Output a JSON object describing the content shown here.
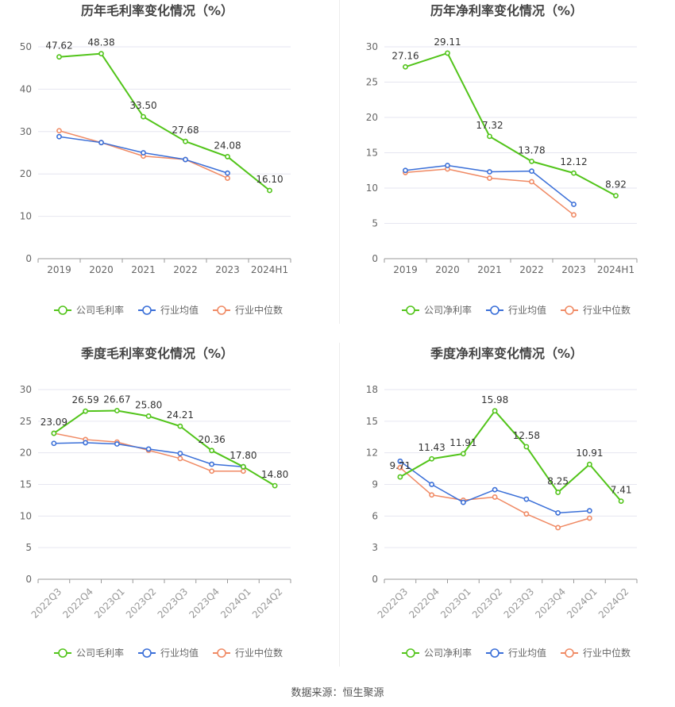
{
  "source_text": "数据来源：恒生聚源",
  "colors": {
    "company": "#52c41a",
    "industry_avg": "#3a6fd8",
    "industry_median": "#f08a64",
    "axis": "#999999",
    "grid": "#e6e6f0",
    "text": "#666666",
    "title": "#444444",
    "label": "#333333"
  },
  "chart_data": [
    {
      "type": "line",
      "title": "历年毛利率变化情况（%）",
      "categories": [
        "2019",
        "2020",
        "2021",
        "2022",
        "2023",
        "2024H1"
      ],
      "ylim": [
        0,
        50
      ],
      "yticks": [
        0,
        10,
        20,
        30,
        40,
        50
      ],
      "grid": true,
      "legend": "bottom",
      "label_series": 0,
      "series": [
        {
          "name": "公司毛利率",
          "color": "#52c41a",
          "values": [
            47.62,
            48.38,
            33.5,
            27.68,
            24.08,
            16.1
          ],
          "labels": [
            "47.62",
            "48.38",
            "33.50",
            "27.68",
            "24.08",
            "16.10"
          ]
        },
        {
          "name": "行业均值",
          "color": "#3a6fd8",
          "values": [
            28.8,
            27.4,
            25.0,
            23.4,
            20.2,
            null
          ]
        },
        {
          "name": "行业中位数",
          "color": "#f08a64",
          "values": [
            30.2,
            27.4,
            24.2,
            23.4,
            19.0,
            null
          ]
        }
      ]
    },
    {
      "type": "line",
      "title": "历年净利率变化情况（%）",
      "categories": [
        "2019",
        "2020",
        "2021",
        "2022",
        "2023",
        "2024H1"
      ],
      "ylim": [
        0,
        30
      ],
      "yticks": [
        0,
        5,
        10,
        15,
        20,
        25,
        30
      ],
      "grid": true,
      "legend": "bottom",
      "label_series": 0,
      "series": [
        {
          "name": "公司净利率",
          "color": "#52c41a",
          "values": [
            27.16,
            29.11,
            17.32,
            13.78,
            12.12,
            8.92
          ],
          "labels": [
            "27.16",
            "29.11",
            "17.32",
            "13.78",
            "12.12",
            "8.92"
          ]
        },
        {
          "name": "行业均值",
          "color": "#3a6fd8",
          "values": [
            12.5,
            13.2,
            12.3,
            12.4,
            7.7,
            null
          ]
        },
        {
          "name": "行业中位数",
          "color": "#f08a64",
          "values": [
            12.2,
            12.7,
            11.4,
            10.9,
            6.2,
            null
          ]
        }
      ]
    },
    {
      "type": "line",
      "title": "季度毛利率变化情况（%）",
      "categories": [
        "2022Q3",
        "2022Q4",
        "2023Q1",
        "2023Q2",
        "2023Q3",
        "2023Q4",
        "2024Q1",
        "2024Q2"
      ],
      "ylim": [
        0,
        30
      ],
      "yticks": [
        0,
        5,
        10,
        15,
        20,
        25,
        30
      ],
      "grid": true,
      "legend": "bottom",
      "label_series": 0,
      "series": [
        {
          "name": "公司毛利率",
          "color": "#52c41a",
          "values": [
            23.09,
            26.59,
            26.67,
            25.8,
            24.21,
            20.36,
            17.8,
            14.8
          ],
          "labels": [
            "23.09",
            "26.59",
            "26.67",
            "25.80",
            "24.21",
            "20.36",
            "17.80",
            "14.80"
          ]
        },
        {
          "name": "行业均值",
          "color": "#3a6fd8",
          "values": [
            21.5,
            21.6,
            21.4,
            20.6,
            19.9,
            18.2,
            17.8,
            null
          ]
        },
        {
          "name": "行业中位数",
          "color": "#f08a64",
          "values": [
            23.1,
            22.1,
            21.7,
            20.4,
            19.1,
            17.1,
            17.1,
            null
          ]
        }
      ]
    },
    {
      "type": "line",
      "title": "季度净利率变化情况（%）",
      "categories": [
        "2022Q3",
        "2022Q4",
        "2023Q1",
        "2023Q2",
        "2023Q3",
        "2023Q4",
        "2024Q1",
        "2024Q2"
      ],
      "ylim": [
        0,
        18
      ],
      "yticks": [
        0,
        3,
        6,
        9,
        12,
        15,
        18
      ],
      "grid": true,
      "legend": "bottom",
      "label_series": 0,
      "series": [
        {
          "name": "公司净利率",
          "color": "#52c41a",
          "values": [
            9.71,
            11.43,
            11.91,
            15.98,
            12.58,
            8.25,
            10.91,
            7.41
          ],
          "labels": [
            "9.71",
            "11.43",
            "11.91",
            "15.98",
            "12.58",
            "8.25",
            "10.91",
            "7.41"
          ]
        },
        {
          "name": "行业均值",
          "color": "#3a6fd8",
          "values": [
            11.2,
            9.0,
            7.3,
            8.5,
            7.6,
            6.3,
            6.5,
            null
          ]
        },
        {
          "name": "行业中位数",
          "color": "#f08a64",
          "values": [
            10.6,
            8.0,
            7.5,
            7.8,
            6.2,
            4.9,
            5.8,
            null
          ]
        }
      ]
    }
  ]
}
